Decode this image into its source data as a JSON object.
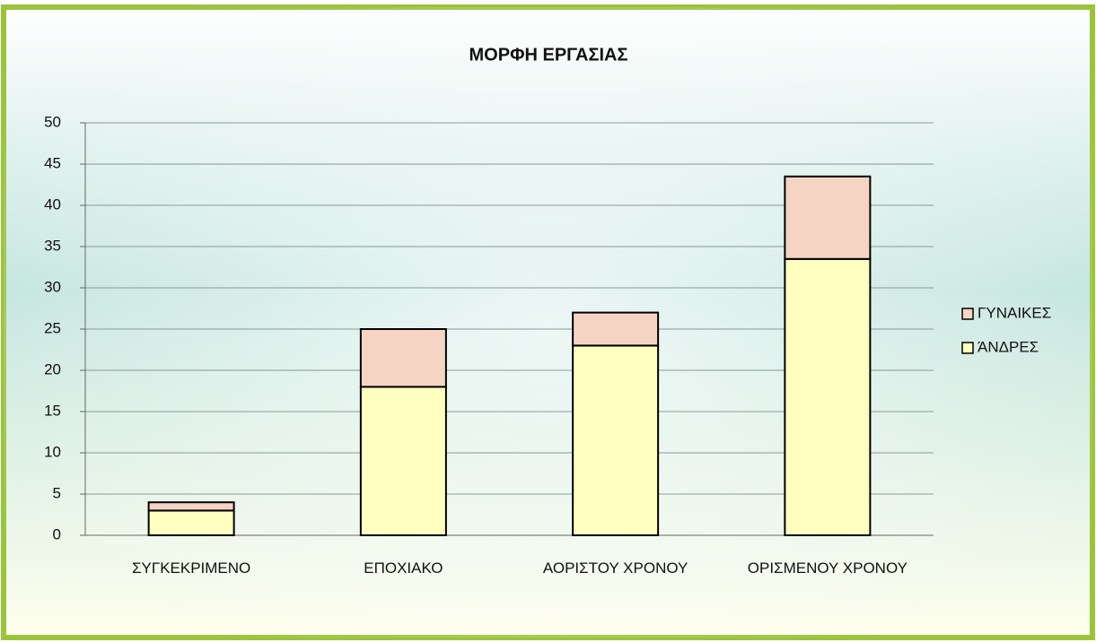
{
  "chart_data": {
    "type": "stacked_bar",
    "title": "ΜΟΡΦΗ ΕΡΓΑΣΙΑΣ",
    "categories": [
      "ΣΥΓΚΕΚΡΙΜΕΝΟ",
      "ΕΠΟΧΙΑΚΟ",
      "ΑΟΡΙΣΤΟΥ ΧΡΟΝΟΥ",
      "ΟΡΙΣΜΕΝΟΥ ΧΡΟΝΟΥ"
    ],
    "series": [
      {
        "name": "ΆΝΔΡΕΣ",
        "color": "#ffffc0",
        "values": [
          3,
          18,
          23,
          33.5
        ]
      },
      {
        "name": "ΓΥΝΑΙΚΕΣ",
        "color": "#f6d4c3",
        "values": [
          1,
          7,
          4,
          10
        ]
      }
    ],
    "ylim": [
      0,
      50
    ],
    "yticks": [
      0,
      5,
      10,
      15,
      20,
      25,
      30,
      35,
      40,
      45,
      50
    ],
    "grid": true,
    "legend": "right"
  }
}
